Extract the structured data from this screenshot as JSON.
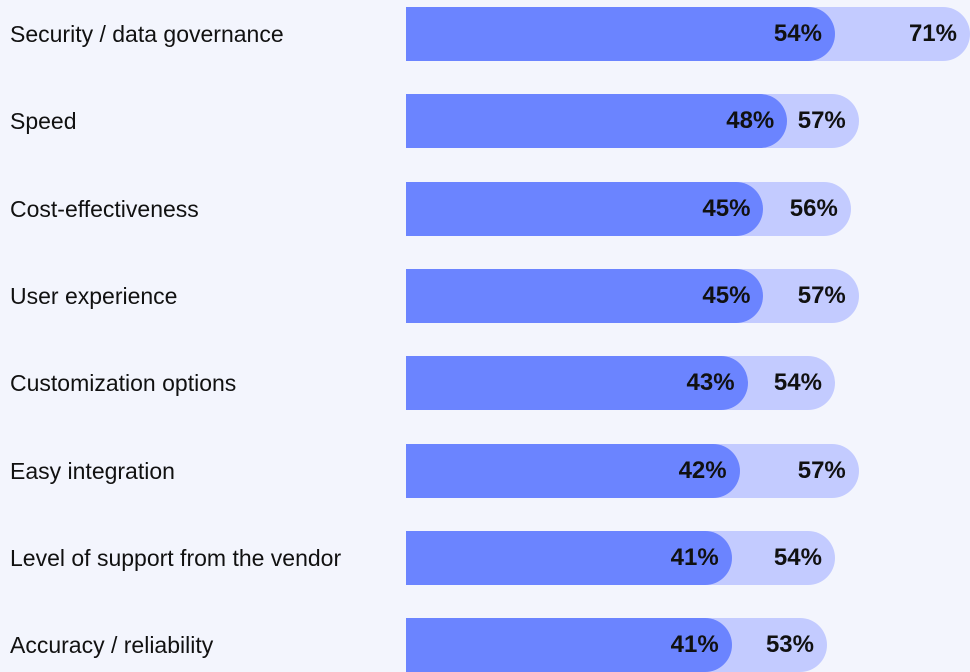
{
  "chart_data": {
    "type": "bar",
    "orientation": "horizontal",
    "categories": [
      "Security / data governance",
      "Speed",
      "Cost-effectiveness",
      "User experience",
      "Customization options",
      "Easy integration",
      "Level of support from the vendor",
      "Accuracy / reliability"
    ],
    "series": [
      {
        "color": "#c3cbff",
        "values": [
          71,
          57,
          56,
          57,
          54,
          57,
          54,
          53
        ],
        "value_labels": [
          "71%",
          "57%",
          "56%",
          "57%",
          "54%",
          "57%",
          "54%",
          "53%"
        ]
      },
      {
        "color": "#6b84ff",
        "values": [
          54,
          48,
          45,
          45,
          43,
          42,
          41,
          41
        ],
        "value_labels": [
          "54%",
          "48%",
          "45%",
          "45%",
          "43%",
          "42%",
          "41%",
          "41%"
        ]
      }
    ]
  }
}
